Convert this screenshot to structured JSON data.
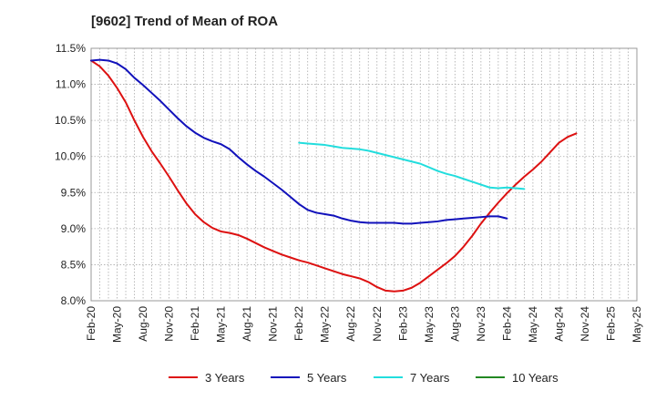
{
  "chart_data": {
    "type": "line",
    "title": "[9602]  Trend of Mean of ROA",
    "xlabel": "",
    "ylabel": "",
    "ylim": [
      8.0,
      11.5
    ],
    "yticks": [
      8.0,
      8.5,
      9.0,
      9.5,
      10.0,
      10.5,
      11.0,
      11.5
    ],
    "ytick_labels": [
      "8.0%",
      "8.5%",
      "9.0%",
      "9.5%",
      "10.0%",
      "10.5%",
      "11.0%",
      "11.5%"
    ],
    "x_start": "Feb-20",
    "x_count": 64,
    "xtick_labels": [
      "Feb-20",
      "May-20",
      "Aug-20",
      "Nov-20",
      "Feb-21",
      "May-21",
      "Aug-21",
      "Nov-21",
      "Feb-22",
      "May-22",
      "Aug-22",
      "Nov-22",
      "Feb-23",
      "May-23",
      "Aug-23",
      "Nov-23",
      "Feb-24",
      "May-24",
      "Aug-24",
      "Nov-24",
      "Feb-25",
      "May-25"
    ],
    "grid": true,
    "legend_position": "bottom",
    "series": [
      {
        "name": "3 Years",
        "color": "#dd1111",
        "start": 0,
        "values": [
          11.33,
          11.25,
          11.12,
          10.95,
          10.75,
          10.5,
          10.27,
          10.07,
          9.9,
          9.72,
          9.53,
          9.35,
          9.2,
          9.09,
          9.01,
          8.96,
          8.94,
          8.91,
          8.86,
          8.8,
          8.74,
          8.69,
          8.64,
          8.6,
          8.56,
          8.53,
          8.49,
          8.45,
          8.41,
          8.37,
          8.34,
          8.31,
          8.26,
          8.19,
          8.14,
          8.13,
          8.14,
          8.18,
          8.25,
          8.34,
          8.43,
          8.52,
          8.62,
          8.75,
          8.9,
          9.07,
          9.22,
          9.36,
          9.49,
          9.61,
          9.72,
          9.82,
          9.93,
          10.06,
          10.19,
          10.27,
          10.32
        ]
      },
      {
        "name": "5 Years",
        "color": "#1111bb",
        "start": 0,
        "values": [
          11.33,
          11.34,
          11.33,
          11.29,
          11.21,
          11.09,
          10.99,
          10.88,
          10.77,
          10.65,
          10.53,
          10.42,
          10.33,
          10.26,
          10.21,
          10.17,
          10.1,
          9.99,
          9.89,
          9.8,
          9.72,
          9.63,
          9.54,
          9.44,
          9.34,
          9.26,
          9.22,
          9.2,
          9.18,
          9.14,
          9.11,
          9.09,
          9.08,
          9.08,
          9.08,
          9.08,
          9.07,
          9.07,
          9.08,
          9.09,
          9.1,
          9.12,
          9.13,
          9.14,
          9.15,
          9.16,
          9.17,
          9.17,
          9.14
        ]
      },
      {
        "name": "7 Years",
        "color": "#22dddd",
        "start": 24,
        "values": [
          10.19,
          10.18,
          10.17,
          10.16,
          10.14,
          10.12,
          10.11,
          10.1,
          10.08,
          10.05,
          10.02,
          9.99,
          9.96,
          9.93,
          9.9,
          9.85,
          9.8,
          9.76,
          9.73,
          9.69,
          9.65,
          9.61,
          9.57,
          9.56,
          9.57,
          9.56,
          9.55
        ]
      },
      {
        "name": "10 Years",
        "color": "#228822",
        "start": 0,
        "values": []
      }
    ]
  }
}
